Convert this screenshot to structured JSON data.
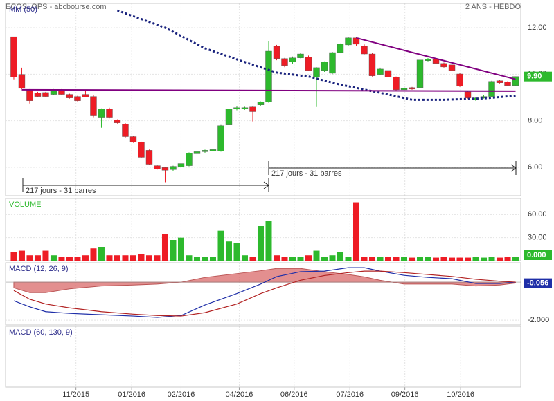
{
  "header": {
    "title": "ECOSLOPS - abcbourse.com",
    "period": "2 ANS - HEBDO"
  },
  "x_axis": {
    "xlim": [
      -1.04,
      63.65
    ],
    "xticks": [
      {
        "value": 7.8,
        "label": "11/2015"
      },
      {
        "value": 14.8,
        "label": "01/2016"
      },
      {
        "value": 21,
        "label": "02/2016"
      },
      {
        "value": 28.3,
        "label": "04/2016"
      },
      {
        "value": 35.2,
        "label": "06/2016"
      },
      {
        "value": 42.2,
        "label": "07/2016"
      },
      {
        "value": 49.1,
        "label": "09/2016"
      },
      {
        "value": 56.1,
        "label": "10/2016"
      }
    ]
  },
  "chart_data": [
    {
      "type": "candlestick",
      "title": "MM (50)",
      "ylim": [
        4.78,
        13.04
      ],
      "yticks": [
        {
          "value": 6,
          "label": "6.00"
        },
        {
          "value": 8,
          "label": "8.00"
        },
        {
          "value": 10,
          "label": "10.00"
        },
        {
          "value": 12,
          "label": "12.00"
        }
      ],
      "grid": true,
      "up_color": "#2db92d",
      "down_color": "#ee1c25",
      "candles": {
        "open": [
          11.61,
          9.99,
          9.33,
          9.19,
          9.21,
          9.13,
          9.33,
          9.13,
          9.04,
          9.13,
          9.04,
          8.15,
          8.5,
          8.03,
          7.85,
          7.32,
          7.08,
          6.73,
          6.07,
          5.99,
          5.9,
          6.01,
          6.07,
          6.58,
          6.67,
          6.7,
          6.7,
          7.82,
          8.5,
          8.5,
          8.59,
          8.68,
          8.8,
          11.2,
          10.67,
          10.52,
          10.7,
          10.73,
          9.87,
          10.16,
          10.04,
          10.93,
          11.26,
          11.56,
          11.2,
          10.87,
          9.99,
          10.16,
          9.87,
          9.33,
          9.42,
          9.42,
          10.58,
          10.64,
          10.46,
          10.4,
          10.01,
          9.24,
          8.89,
          8.98,
          9.04,
          9.72,
          9.66,
          9.51
        ],
        "high": [
          11.61,
          10.28,
          9.36,
          9.24,
          9.24,
          9.36,
          9.36,
          9.16,
          9.07,
          9.33,
          9.1,
          8.53,
          8.56,
          8.06,
          7.9,
          7.35,
          7.1,
          6.76,
          6.1,
          6.01,
          6.07,
          6.19,
          6.64,
          6.7,
          6.76,
          6.8,
          7.82,
          8.53,
          8.62,
          8.6,
          8.62,
          8.83,
          11.41,
          11.26,
          10.7,
          10.76,
          10.9,
          10.8,
          10.3,
          10.55,
          10.96,
          11.32,
          11.6,
          11.6,
          11.28,
          10.9,
          10.28,
          10.2,
          9.9,
          9.4,
          9.45,
          10.64,
          10.7,
          10.67,
          10.5,
          10.43,
          10.04,
          9.27,
          9.0,
          9.1,
          9.72,
          9.75,
          9.7,
          9.9
        ],
        "low": [
          9.78,
          9.36,
          8.74,
          9.01,
          9.01,
          9.1,
          9.1,
          8.95,
          8.83,
          9.0,
          8.15,
          7.7,
          8.1,
          7.88,
          7.28,
          7.05,
          6.4,
          6.1,
          5.9,
          5.36,
          5.85,
          5.98,
          6.04,
          6.5,
          6.6,
          6.65,
          6.67,
          7.8,
          8.45,
          8.47,
          7.97,
          8.65,
          8.77,
          10.6,
          10.3,
          10.45,
          10.68,
          10.13,
          8.59,
          10.1,
          10.0,
          10.9,
          11.2,
          11.2,
          10.85,
          9.9,
          9.95,
          9.8,
          9.3,
          9.3,
          9.33,
          9.4,
          10.55,
          10.4,
          10.28,
          10.13,
          9.45,
          8.95,
          8.85,
          8.95,
          9.0,
          9.6,
          9.48,
          9.48
        ],
        "close": [
          9.87,
          9.39,
          8.86,
          9.04,
          9.04,
          9.33,
          9.13,
          8.98,
          8.86,
          9.01,
          8.21,
          8.5,
          8.15,
          7.91,
          7.32,
          7.08,
          6.43,
          6.13,
          5.93,
          5.87,
          6.04,
          6.16,
          6.61,
          6.67,
          6.73,
          6.76,
          7.79,
          8.5,
          8.56,
          8.56,
          8.39,
          8.8,
          10.99,
          10.67,
          10.37,
          10.7,
          10.87,
          10.16,
          10.28,
          10.52,
          10.93,
          11.29,
          11.56,
          11.29,
          10.87,
          9.93,
          10.22,
          9.87,
          9.33,
          9.39,
          9.36,
          10.61,
          10.64,
          10.46,
          10.31,
          10.16,
          9.48,
          8.98,
          8.98,
          9.04,
          9.69,
          9.63,
          9.51,
          9.9
        ]
      },
      "ma": {
        "color": "#1a237e",
        "x": [
          13,
          19,
          24,
          29,
          33,
          37,
          41,
          46,
          50,
          54,
          59,
          63
        ],
        "values": [
          12.74,
          12.0,
          11.11,
          10.52,
          10.07,
          9.9,
          9.55,
          9.2,
          8.9,
          8.9,
          8.96,
          9.07
        ]
      },
      "trendlines": [
        {
          "color": "#800080",
          "x": [
            1,
            63
          ],
          "values": [
            9.33,
            9.27
          ]
        },
        {
          "color": "#800080",
          "x": [
            43,
            63
          ],
          "values": [
            11.56,
            9.78
          ]
        }
      ],
      "annotations": [
        "217 jours - 31 barres",
        "217 jours - 31 barres"
      ],
      "tag": {
        "value": 9.9,
        "label": "9.90",
        "color": "#2db92d"
      }
    },
    {
      "type": "bar",
      "title": "VOLUME",
      "ylim": [
        0,
        81
      ],
      "yticks": [
        {
          "value": 30,
          "label": "30.00"
        },
        {
          "value": 60,
          "label": "60.00"
        }
      ],
      "grid": true,
      "values": [
        11,
        13,
        7,
        7,
        13,
        7,
        5,
        5,
        5,
        7,
        16,
        18,
        7,
        7,
        7,
        7,
        9,
        7,
        7,
        35,
        27,
        30,
        7,
        5,
        5,
        5,
        39,
        25,
        23,
        7,
        5,
        45,
        52,
        7,
        5,
        5,
        5,
        7,
        13,
        5,
        7,
        11,
        5,
        76,
        5,
        5,
        5,
        5,
        5,
        5,
        4,
        5,
        5,
        4,
        5,
        4,
        4,
        4,
        5,
        4,
        5,
        4,
        5,
        5
      ],
      "tag": {
        "value": 0,
        "label": "0.000",
        "color": "#2db92d"
      }
    },
    {
      "type": "line",
      "title": "MACD (12, 26, 9)",
      "ylim": [
        -2.25,
        1.02
      ],
      "yticks": [
        {
          "value": -2,
          "label": "-2.000"
        }
      ],
      "grid": true,
      "x": [
        0,
        2,
        4,
        7,
        11,
        15,
        18,
        21,
        24,
        28,
        31,
        33,
        36,
        39,
        42,
        44,
        46,
        49,
        52,
        55,
        58,
        61,
        63
      ],
      "histogram": {
        "color": "#d96a6a",
        "values": [
          -0.3,
          -0.55,
          -0.55,
          -0.35,
          -0.2,
          -0.15,
          -0.1,
          0.0,
          0.25,
          0.45,
          0.6,
          0.72,
          0.72,
          0.55,
          0.4,
          0.28,
          0.1,
          -0.1,
          -0.1,
          -0.1,
          -0.2,
          -0.15,
          -0.05
        ]
      },
      "series": [
        {
          "color": "#1f2fa8",
          "values": [
            -0.98,
            -1.3,
            -1.55,
            -1.64,
            -1.71,
            -1.78,
            -1.85,
            -1.75,
            -1.2,
            -0.6,
            -0.1,
            0.29,
            0.55,
            0.58,
            0.76,
            0.76,
            0.58,
            0.36,
            0.25,
            0.18,
            -0.07,
            -0.07,
            0.0
          ]
        },
        {
          "color": "#b22222",
          "values": [
            -0.44,
            -0.9,
            -1.15,
            -1.35,
            -1.55,
            -1.68,
            -1.75,
            -1.78,
            -1.6,
            -1.15,
            -0.6,
            -0.3,
            0.1,
            0.35,
            0.5,
            0.58,
            0.58,
            0.5,
            0.4,
            0.3,
            0.15,
            0.05,
            0.0
          ]
        }
      ],
      "tag": {
        "value": -0.056,
        "label": "-0.056",
        "color": "#1f2fa8"
      }
    },
    {
      "type": "line",
      "title": "MACD (60, 130, 9)"
    }
  ]
}
